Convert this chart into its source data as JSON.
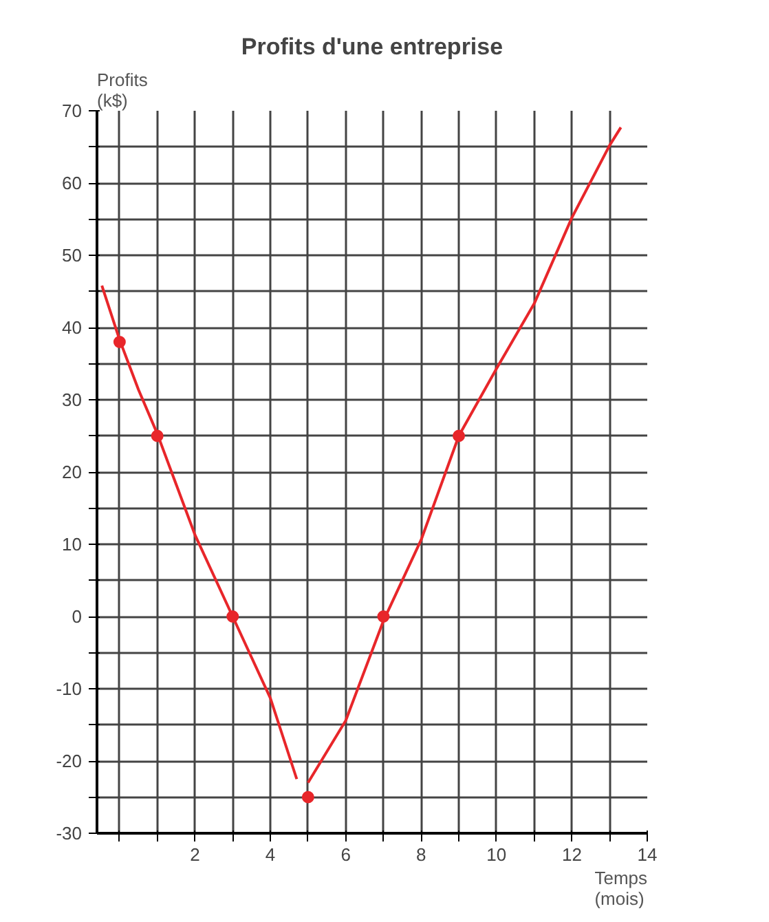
{
  "chart_data": {
    "type": "line",
    "title": "Profits d'une entreprise",
    "xlabel": "Temps\n(mois)",
    "ylabel": "Profits\n(k$)",
    "xlim": [
      -0.6,
      14
    ],
    "ylim": [
      -30,
      70
    ],
    "xticks": [
      {
        "value": 0,
        "label": null
      },
      {
        "value": 1,
        "label": null
      },
      2,
      {
        "value": 3,
        "label": null
      },
      4,
      {
        "value": 5,
        "label": null
      },
      6,
      {
        "value": 7,
        "label": null
      },
      8,
      {
        "value": 9,
        "label": null
      },
      10,
      {
        "value": 11,
        "label": null
      },
      12,
      {
        "value": 13,
        "label": null
      },
      14
    ],
    "yticks": [
      -30,
      {
        "value": -25,
        "label": null
      },
      -20,
      {
        "value": -15,
        "label": null
      },
      -10,
      {
        "value": -5,
        "label": null
      },
      0,
      {
        "value": 5,
        "label": null
      },
      10,
      {
        "value": 15,
        "label": null
      },
      20,
      {
        "value": 25,
        "label": null
      },
      30,
      {
        "value": 35,
        "label": null
      },
      40,
      {
        "value": 45,
        "label": null
      },
      50,
      {
        "value": 55,
        "label": null
      },
      60,
      {
        "value": 65,
        "label": null
      },
      70
    ],
    "grid": true,
    "series": [
      {
        "color": "#e8262a",
        "x": [
          -0.47,
          0,
          0.5,
          1,
          2,
          3,
          4,
          4.7
        ],
        "values": [
          45.8,
          38.3,
          31.4,
          25.3,
          11.3,
          0,
          -11.3,
          -22.5
        ]
      },
      {
        "color": "#e8262a",
        "x": [
          5,
          6,
          7,
          8,
          9,
          10,
          11,
          12,
          13,
          13.3
        ],
        "values": [
          -23,
          -14.4,
          -0.6,
          10.6,
          25,
          34.3,
          43.3,
          55.2,
          65.2,
          67.7
        ]
      },
      {
        "type": "scatter",
        "marker": "circle",
        "color": "#e8262a",
        "x": [
          0,
          1,
          3,
          5,
          7,
          9
        ],
        "values": [
          38,
          25,
          0,
          -25,
          0,
          25
        ]
      }
    ]
  }
}
